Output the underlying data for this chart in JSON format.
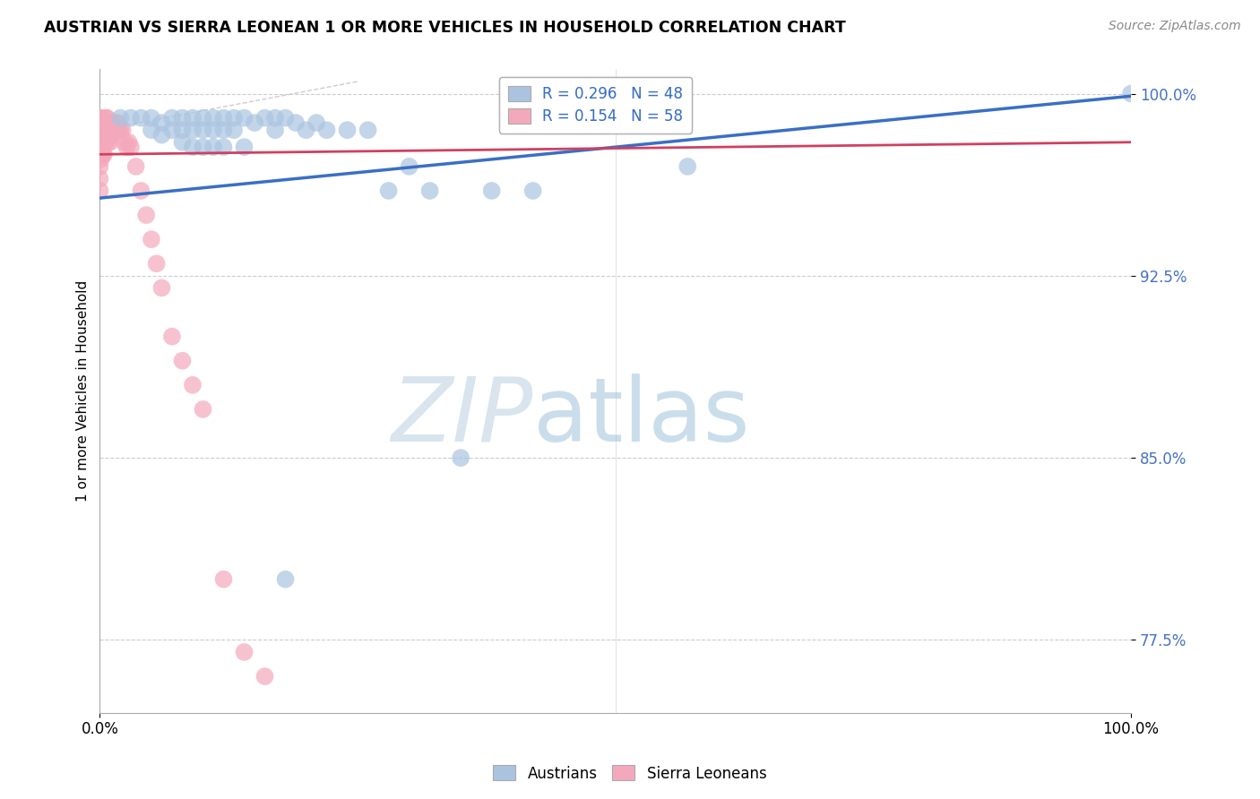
{
  "title": "AUSTRIAN VS SIERRA LEONEAN 1 OR MORE VEHICLES IN HOUSEHOLD CORRELATION CHART",
  "source": "Source: ZipAtlas.com",
  "ylabel": "1 or more Vehicles in Household",
  "x_range": [
    0.0,
    1.0
  ],
  "y_range": [
    0.745,
    1.01
  ],
  "y_ticks": [
    0.775,
    0.85,
    0.925,
    1.0
  ],
  "y_tick_labels": [
    "77.5%",
    "85.0%",
    "92.5%",
    "100.0%"
  ],
  "x_ticks": [
    0.0,
    1.0
  ],
  "x_tick_labels": [
    "0.0%",
    "100.0%"
  ],
  "blue_R": 0.296,
  "blue_N": 48,
  "pink_R": 0.154,
  "pink_N": 58,
  "blue_color": "#aac4e0",
  "pink_color": "#f4a8bb",
  "trendline_blue_color": "#3a6fc4",
  "trendline_pink_color": "#d04060",
  "ref_line_color": "#cccccc",
  "grid_color": "#cccccc",
  "watermark_color": "#d8e8f5",
  "austrians_x": [
    0.02,
    0.03,
    0.04,
    0.05,
    0.05,
    0.06,
    0.06,
    0.07,
    0.07,
    0.08,
    0.08,
    0.08,
    0.09,
    0.09,
    0.09,
    0.1,
    0.1,
    0.1,
    0.11,
    0.11,
    0.11,
    0.12,
    0.12,
    0.12,
    0.13,
    0.13,
    0.14,
    0.14,
    0.15,
    0.16,
    0.17,
    0.17,
    0.18,
    0.19,
    0.2,
    0.21,
    0.22,
    0.24,
    0.26,
    0.28,
    0.3,
    0.32,
    0.35,
    0.38,
    0.42,
    0.18,
    0.57,
    1.0
  ],
  "austrians_y": [
    0.99,
    0.99,
    0.99,
    0.99,
    0.985,
    0.988,
    0.983,
    0.99,
    0.985,
    0.99,
    0.985,
    0.98,
    0.99,
    0.985,
    0.978,
    0.99,
    0.985,
    0.978,
    0.99,
    0.985,
    0.978,
    0.99,
    0.985,
    0.978,
    0.99,
    0.985,
    0.99,
    0.978,
    0.988,
    0.99,
    0.99,
    0.985,
    0.99,
    0.988,
    0.985,
    0.988,
    0.985,
    0.985,
    0.985,
    0.96,
    0.97,
    0.96,
    0.85,
    0.96,
    0.96,
    0.8,
    0.97,
    1.0
  ],
  "sierraleoneans_x": [
    0.0,
    0.0,
    0.0,
    0.0,
    0.0,
    0.0,
    0.0,
    0.001,
    0.001,
    0.001,
    0.001,
    0.002,
    0.002,
    0.002,
    0.003,
    0.003,
    0.003,
    0.004,
    0.004,
    0.004,
    0.005,
    0.005,
    0.006,
    0.006,
    0.007,
    0.007,
    0.008,
    0.008,
    0.009,
    0.01,
    0.01,
    0.011,
    0.012,
    0.013,
    0.014,
    0.015,
    0.016,
    0.017,
    0.018,
    0.02,
    0.022,
    0.024,
    0.026,
    0.028,
    0.03,
    0.035,
    0.04,
    0.045,
    0.05,
    0.055,
    0.06,
    0.07,
    0.08,
    0.09,
    0.1,
    0.12,
    0.14,
    0.16
  ],
  "sierraleoneans_y": [
    0.99,
    0.985,
    0.98,
    0.975,
    0.97,
    0.965,
    0.96,
    0.988,
    0.983,
    0.978,
    0.973,
    0.988,
    0.983,
    0.975,
    0.99,
    0.985,
    0.975,
    0.988,
    0.983,
    0.975,
    0.988,
    0.98,
    0.99,
    0.982,
    0.99,
    0.982,
    0.988,
    0.98,
    0.985,
    0.988,
    0.98,
    0.985,
    0.985,
    0.983,
    0.985,
    0.988,
    0.985,
    0.988,
    0.985,
    0.985,
    0.985,
    0.98,
    0.978,
    0.98,
    0.978,
    0.97,
    0.96,
    0.95,
    0.94,
    0.93,
    0.92,
    0.9,
    0.89,
    0.88,
    0.87,
    0.8,
    0.77,
    0.76
  ]
}
